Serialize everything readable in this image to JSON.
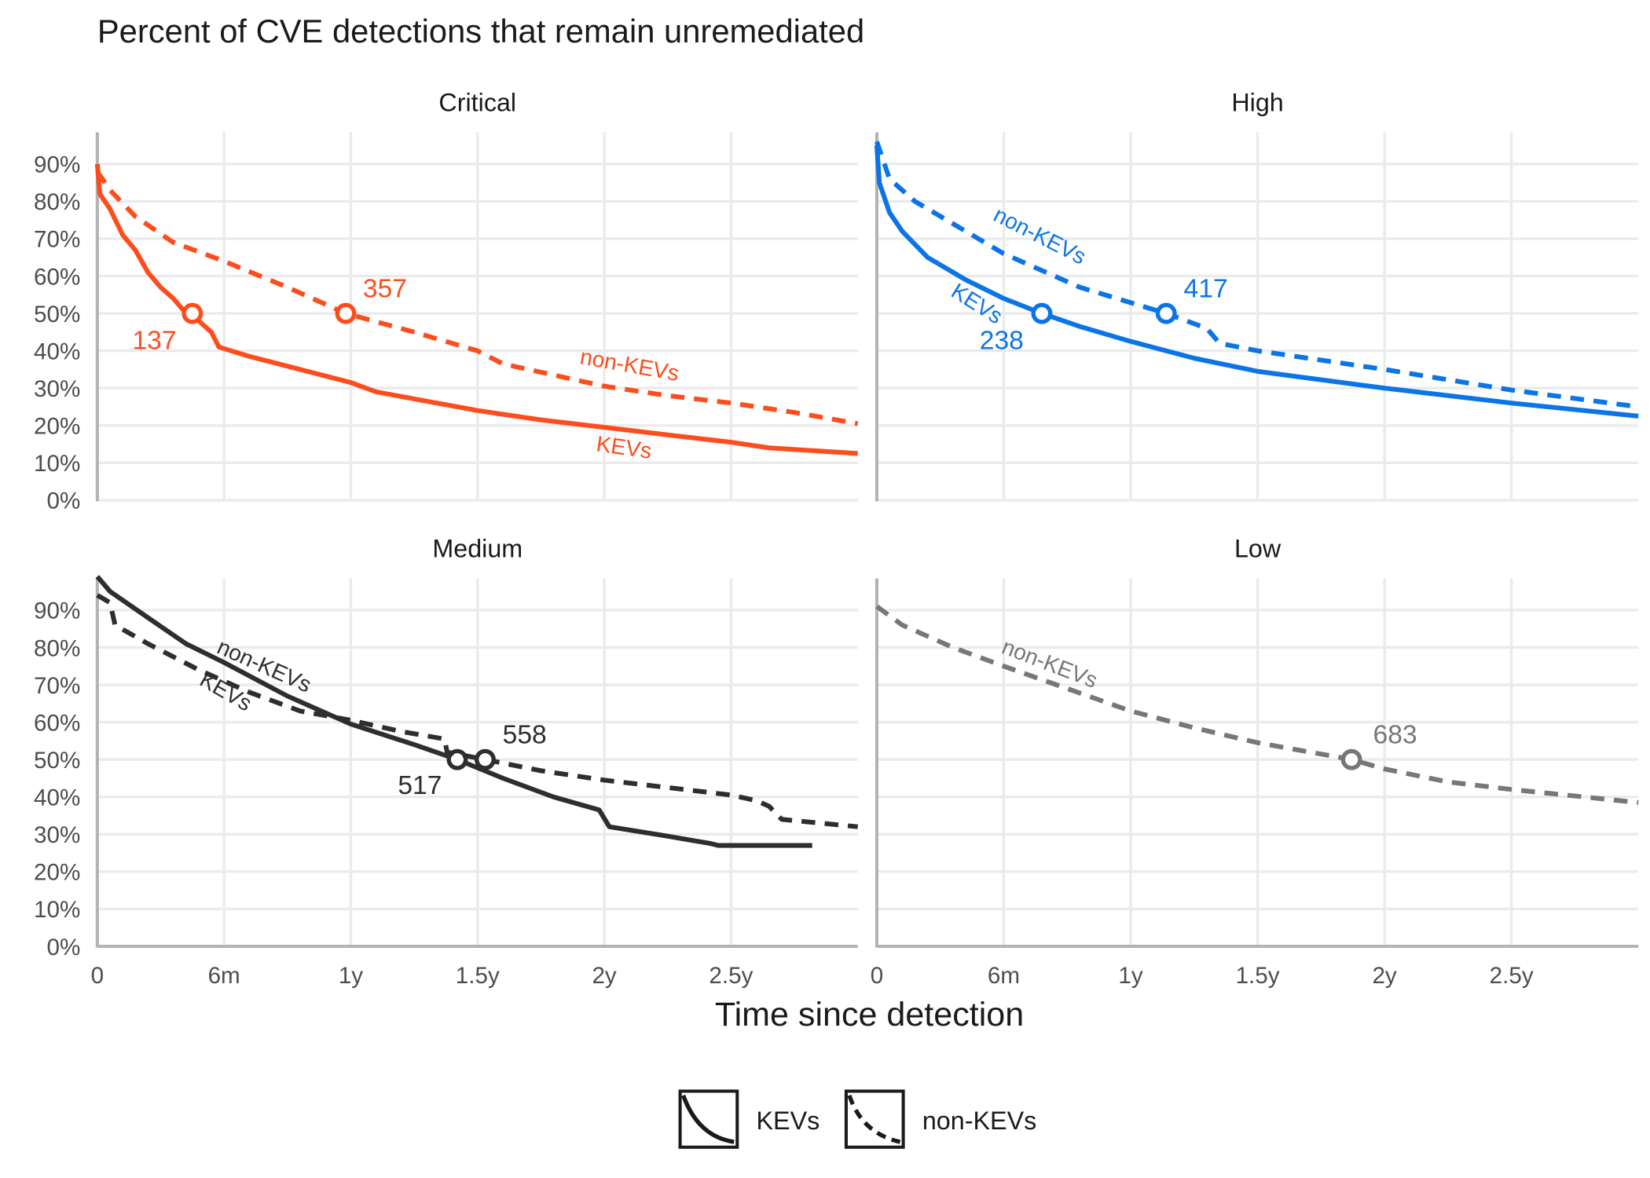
{
  "chart_data": {
    "type": "line",
    "title": "Percent of CVE detections that remain unremediated",
    "xlabel": "Time since detection",
    "ylabel": "",
    "xlim": [
      0,
      3
    ],
    "ylim": [
      0,
      98
    ],
    "x_ticks": [
      0,
      0.5,
      1,
      1.5,
      2,
      2.5
    ],
    "x_tick_labels": [
      "0",
      "6m",
      "1y",
      "1.5y",
      "2y",
      "2.5y"
    ],
    "y_ticks": [
      0,
      10,
      20,
      30,
      40,
      50,
      60,
      70,
      80,
      90
    ],
    "y_tick_labels": [
      "0%",
      "10%",
      "20%",
      "30%",
      "40%",
      "50%",
      "60%",
      "70%",
      "80%",
      "90%"
    ],
    "grid": true,
    "legend": {
      "placement": "bottom",
      "entries": [
        {
          "name": "KEVs",
          "style": "solid"
        },
        {
          "name": "non-KEVs",
          "style": "dashed"
        }
      ]
    },
    "panels": [
      {
        "title": "Critical",
        "color": "#fc4d1d",
        "series": [
          {
            "name": "KEVs",
            "style": "solid",
            "x": [
              0,
              0.01,
              0.05,
              0.1,
              0.15,
              0.2,
              0.25,
              0.3,
              0.35,
              0.4,
              0.45,
              0.48,
              0.6,
              0.8,
              1.0,
              1.1,
              1.3,
              1.5,
              1.75,
              2.0,
              2.25,
              2.5,
              2.65,
              3.0
            ],
            "y": [
              90,
              82,
              78,
              71,
              67,
              61,
              57,
              54,
              50,
              48,
              45,
              41,
              38.5,
              35,
              31.5,
              29,
              26.5,
              24,
              21.5,
              19.5,
              17.5,
              15.5,
              14,
              12.5
            ],
            "median_days": "137",
            "median_x": 0.375
          },
          {
            "name": "non-KEVs",
            "style": "dashed",
            "x": [
              0,
              0.05,
              0.15,
              0.3,
              0.5,
              0.75,
              0.98,
              1.25,
              1.5,
              1.6,
              2.0,
              2.25,
              2.5,
              2.75,
              3.0
            ],
            "y": [
              88,
              83,
              76,
              69,
              64,
              57,
              50,
              45,
              40,
              36.5,
              30.5,
              28,
              26,
              23.5,
              20.5
            ],
            "median_days": "357",
            "median_x": 0.98
          }
        ]
      },
      {
        "title": "High",
        "color": "#0b74e6",
        "series": [
          {
            "name": "KEVs",
            "style": "solid",
            "x": [
              0,
              0.01,
              0.05,
              0.1,
              0.2,
              0.35,
              0.5,
              0.65,
              0.8,
              1.0,
              1.25,
              1.5,
              2.0,
              2.5,
              3.0
            ],
            "y": [
              95,
              85,
              77,
              72,
              65,
              59,
              54,
              50,
              46.5,
              42.5,
              38,
              34.5,
              30,
              26,
              22.5
            ],
            "median_days": "238",
            "median_x": 0.65
          },
          {
            "name": "non-KEVs",
            "style": "dashed",
            "x": [
              0,
              0.05,
              0.15,
              0.3,
              0.5,
              0.8,
              1.14,
              1.3,
              1.35,
              1.5,
              2.0,
              2.5,
              3.0
            ],
            "y": [
              96,
              86,
              80,
              74,
              66,
              57,
              50,
              46,
              42,
              40,
              35,
              29.5,
              25
            ],
            "median_days": "417",
            "median_x": 1.14
          }
        ]
      },
      {
        "title": "Medium",
        "color": "#2e2e2e",
        "series": [
          {
            "name": "KEVs",
            "style": "solid",
            "x": [
              0,
              0.05,
              0.2,
              0.35,
              0.5,
              0.75,
              1.0,
              1.25,
              1.42,
              1.6,
              1.8,
              1.98,
              2.02,
              2.25,
              2.42,
              2.45,
              2.82
            ],
            "y": [
              99,
              95,
              88,
              81,
              76,
              67,
              59.5,
              54,
              50,
              45,
              40,
              36.5,
              32,
              29.5,
              27.5,
              27,
              27
            ],
            "median_days": "517",
            "median_x": 1.42
          },
          {
            "name": "non-KEVs",
            "style": "dashed",
            "x": [
              0,
              0.05,
              0.07,
              0.2,
              0.4,
              0.6,
              0.8,
              1.0,
              1.2,
              1.37,
              1.38,
              1.53,
              1.75,
              2.0,
              2.25,
              2.5,
              2.6,
              2.65,
              2.7,
              3.0
            ],
            "y": [
              94,
              92,
              86,
              81,
              74,
              68,
              63,
              60.5,
              57.5,
              55.5,
              52,
              50,
              47,
              44.5,
              42.5,
              40.5,
              39,
              37.5,
              34,
              32
            ],
            "median_days": "558",
            "median_x": 1.53
          }
        ]
      },
      {
        "title": "Low",
        "color": "#777777",
        "series": [
          {
            "name": "non-KEVs",
            "style": "dashed",
            "x": [
              0,
              0.1,
              0.3,
              0.5,
              0.75,
              1.0,
              1.25,
              1.5,
              1.87,
              2.0,
              2.25,
              2.5,
              3.0
            ],
            "y": [
              91,
              86,
              80,
              75,
              69,
              63,
              58.5,
              54.5,
              50,
              47.5,
              44,
              42,
              38.5
            ],
            "median_days": "683",
            "median_x": 1.87
          }
        ]
      }
    ]
  }
}
